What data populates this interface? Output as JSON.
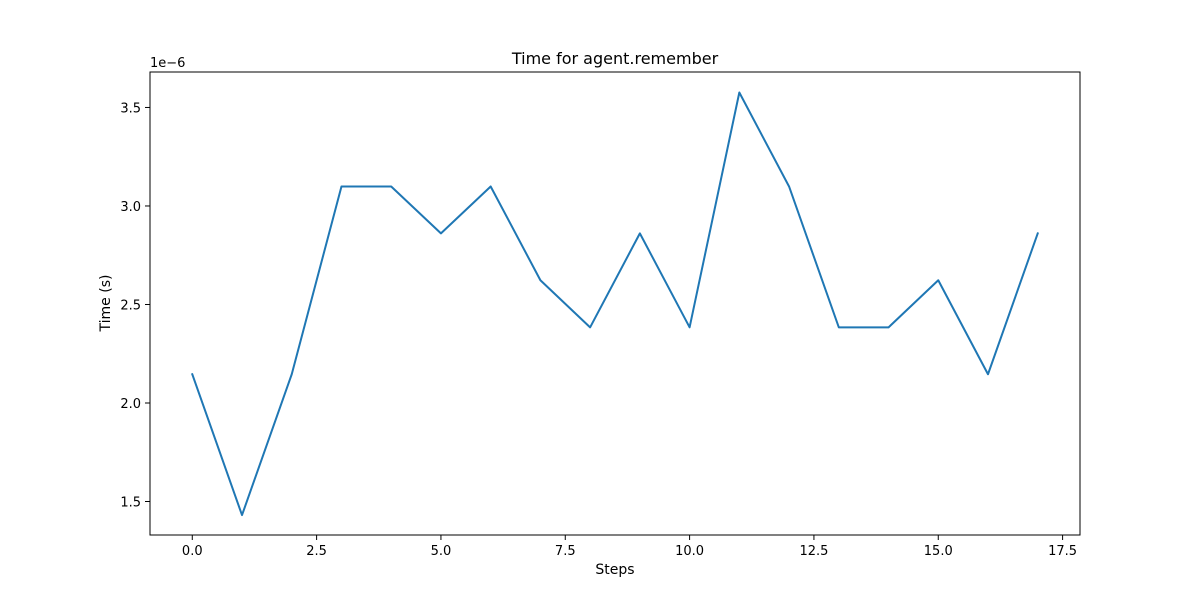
{
  "chart_data": {
    "type": "line",
    "title": "Time for agent.remember",
    "xlabel": "Steps",
    "ylabel": "Time (s)",
    "y_offset_label": "1e−6",
    "x_scale_factor": 1,
    "y_scale_factor": 1e-06,
    "xlim": [
      -0.85,
      17.85
    ],
    "ylim": [
      1.33e-06,
      3.68e-06
    ],
    "grid": false,
    "x_ticks": [
      0.0,
      2.5,
      5.0,
      7.5,
      10.0,
      12.5,
      15.0,
      17.5
    ],
    "x_tick_labels": [
      "0.0",
      "2.5",
      "5.0",
      "7.5",
      "10.0",
      "12.5",
      "15.0",
      "17.5"
    ],
    "y_ticks": [
      1.5e-06,
      2e-06,
      2.5e-06,
      3e-06,
      3.5e-06
    ],
    "y_tick_labels": [
      "1.5",
      "2.0",
      "2.5",
      "3.0",
      "3.5"
    ],
    "series": [
      {
        "color": "#1f77b4",
        "x": [
          0,
          1,
          2,
          3,
          4,
          5,
          6,
          7,
          8,
          9,
          10,
          11,
          12,
          13,
          14,
          15,
          16,
          17
        ],
        "y": [
          2.146e-06,
          1.431e-06,
          2.146e-06,
          3.099e-06,
          3.099e-06,
          2.861e-06,
          3.099e-06,
          2.623e-06,
          2.384e-06,
          2.861e-06,
          2.384e-06,
          3.576e-06,
          3.099e-06,
          2.384e-06,
          2.384e-06,
          2.623e-06,
          2.146e-06,
          2.861e-06
        ]
      }
    ]
  }
}
